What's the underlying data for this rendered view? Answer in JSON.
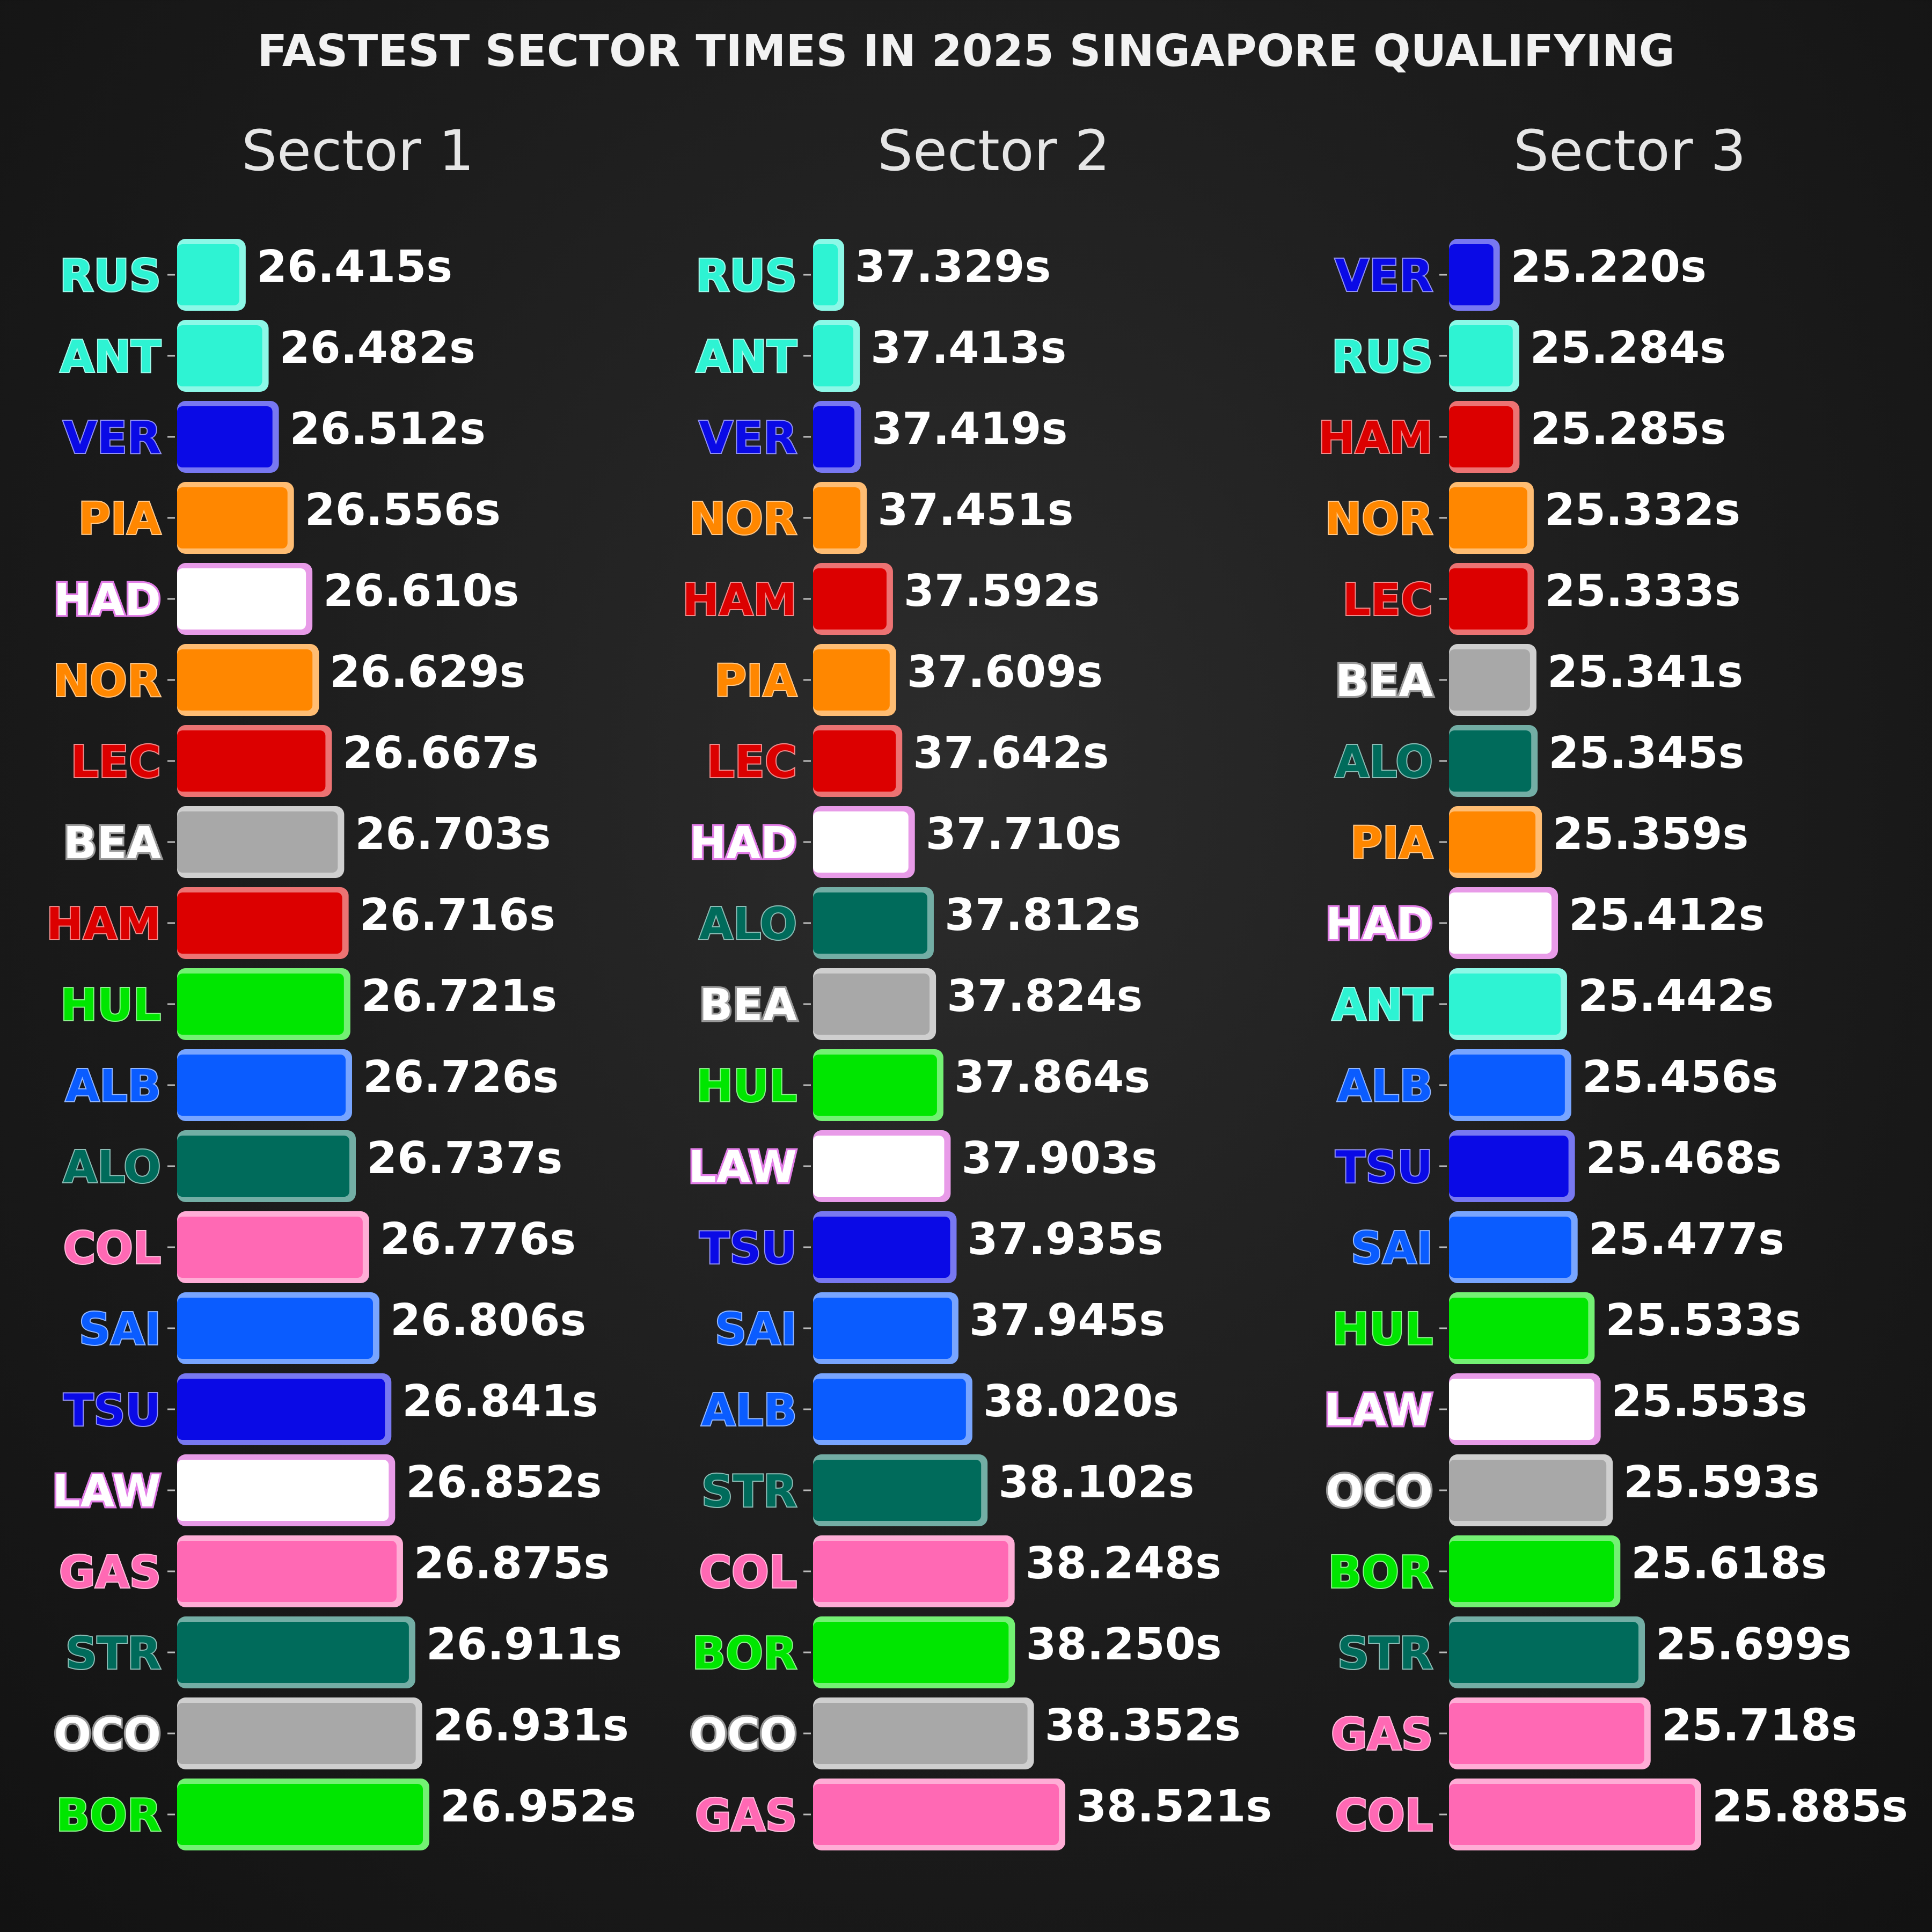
{
  "title": "FASTEST SECTOR TIMES IN 2025 SINGAPORE QUALIFYING",
  "team_colors": {
    "RUS": "#2ef3d3",
    "ANT": "#2ef3d3",
    "VER": "#0a0ae6",
    "TSU": "#0a0ae6",
    "PIA": "#ff8700",
    "NOR": "#ff8700",
    "HAD": "#ffffff",
    "LAW": "#ffffff",
    "LEC": "#dc0000",
    "HAM": "#dc0000",
    "BEA": "#a8a8a8",
    "OCO": "#a8a8a8",
    "HUL": "#00e600",
    "BOR": "#00e600",
    "ALB": "#0a5cff",
    "SAI": "#0a5cff",
    "ALO": "#006b5b",
    "STR": "#006b5b",
    "COL": "#ff69b4",
    "GAS": "#ff69b4"
  },
  "chart_data": [
    {
      "type": "bar",
      "orientation": "horizontal",
      "title": "Sector 1",
      "categories": [
        "RUS",
        "ANT",
        "VER",
        "PIA",
        "HAD",
        "NOR",
        "LEC",
        "BEA",
        "HAM",
        "HUL",
        "ALB",
        "ALO",
        "COL",
        "SAI",
        "TSU",
        "LAW",
        "GAS",
        "STR",
        "OCO",
        "BOR"
      ],
      "values": [
        26.415,
        26.482,
        26.512,
        26.556,
        26.61,
        26.629,
        26.667,
        26.703,
        26.716,
        26.721,
        26.726,
        26.737,
        26.776,
        26.806,
        26.841,
        26.852,
        26.875,
        26.911,
        26.931,
        26.952
      ],
      "labels": [
        "26.415s",
        "26.482s",
        "26.512s",
        "26.556s",
        "26.610s",
        "26.629s",
        "26.667s",
        "26.703s",
        "26.716s",
        "26.721s",
        "26.726s",
        "26.737s",
        "26.776s",
        "26.806s",
        "26.841s",
        "26.852s",
        "26.875s",
        "26.911s",
        "26.931s",
        "26.952s"
      ],
      "xlim": [
        26.23,
        26.952
      ]
    },
    {
      "type": "bar",
      "orientation": "horizontal",
      "title": "Sector 2",
      "categories": [
        "RUS",
        "ANT",
        "VER",
        "NOR",
        "HAM",
        "PIA",
        "LEC",
        "HAD",
        "ALO",
        "BEA",
        "HUL",
        "LAW",
        "TSU",
        "SAI",
        "ALB",
        "STR",
        "COL",
        "BOR",
        "OCO",
        "GAS"
      ],
      "values": [
        37.329,
        37.413,
        37.419,
        37.451,
        37.592,
        37.609,
        37.642,
        37.71,
        37.812,
        37.824,
        37.864,
        37.903,
        37.935,
        37.945,
        38.02,
        38.102,
        38.248,
        38.25,
        38.352,
        38.521
      ],
      "labels": [
        "37.329s",
        "37.413s",
        "37.419s",
        "37.451s",
        "37.592s",
        "37.609s",
        "37.642s",
        "37.710s",
        "37.812s",
        "37.824s",
        "37.864s",
        "37.903s",
        "37.935s",
        "37.945s",
        "38.020s",
        "38.102s",
        "38.248s",
        "38.250s",
        "38.352s",
        "38.521s"
      ],
      "xlim": [
        37.19,
        38.521
      ]
    },
    {
      "type": "bar",
      "orientation": "horizontal",
      "title": "Sector 3",
      "categories": [
        "VER",
        "RUS",
        "HAM",
        "NOR",
        "LEC",
        "BEA",
        "ALO",
        "PIA",
        "HAD",
        "ANT",
        "ALB",
        "TSU",
        "SAI",
        "HUL",
        "LAW",
        "OCO",
        "BOR",
        "STR",
        "GAS",
        "COL"
      ],
      "values": [
        25.22,
        25.284,
        25.285,
        25.332,
        25.333,
        25.341,
        25.345,
        25.359,
        25.412,
        25.442,
        25.456,
        25.468,
        25.477,
        25.533,
        25.553,
        25.593,
        25.618,
        25.699,
        25.718,
        25.885
      ],
      "labels": [
        "25.220s",
        "25.284s",
        "25.285s",
        "25.332s",
        "25.333s",
        "25.341s",
        "25.345s",
        "25.359s",
        "25.412s",
        "25.442s",
        "25.456s",
        "25.468s",
        "25.477s",
        "25.533s",
        "25.553s",
        "25.593s",
        "25.618s",
        "25.699s",
        "25.718s",
        "25.885s"
      ],
      "xlim": [
        25.07,
        25.885
      ]
    }
  ]
}
